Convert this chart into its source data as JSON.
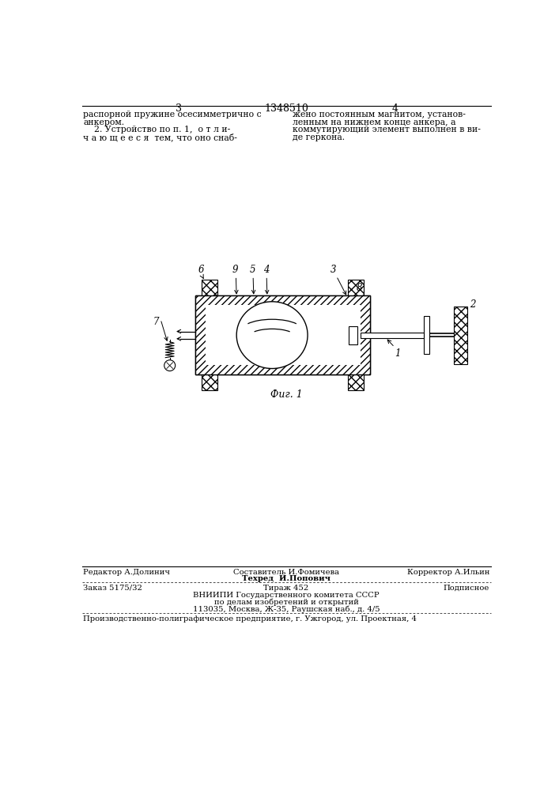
{
  "bg_color": "#ffffff",
  "line_color": "#000000",
  "fig_caption": "Фиг. 1",
  "footer_line1_left": "Редактор А.Долинич",
  "footer_line1_center_1": "Составитель И.Фомичева",
  "footer_line1_center_2": "Техред  И.Попович",
  "footer_line1_right": "Корректор А.Ильин",
  "footer_line2_left": "Заказ 5175/32",
  "footer_line2_center": "Тираж 452",
  "footer_line2_right": "Подписное",
  "footer_line3a": "ВНИИПИ Государственного комитета СССР",
  "footer_line3b": "по делам изобретений и открытий",
  "footer_line3c": "113035, Москва, Ж-35, Раушская наб., д. 4/5",
  "footer_line4": "Производственно-полиграфическое предприятие, г. Ужгород, ул. Проектная, 4",
  "text_top_left_1": "распорной пружине осесимметрично с",
  "text_top_left_2": "анкером.",
  "text_top_left_3": "    2. Устройство по п. 1,  о т л и-",
  "text_top_left_4": "ч а ю щ е е с я  тем, что оно снаб-",
  "text_top_right_1": "жено постоянным магнитом, установ-",
  "text_top_right_2": "ленным на нижнем конце анкера, а",
  "text_top_right_3": "коммутирующий элемент выполнен в ви-",
  "text_top_right_4": "де геркона."
}
